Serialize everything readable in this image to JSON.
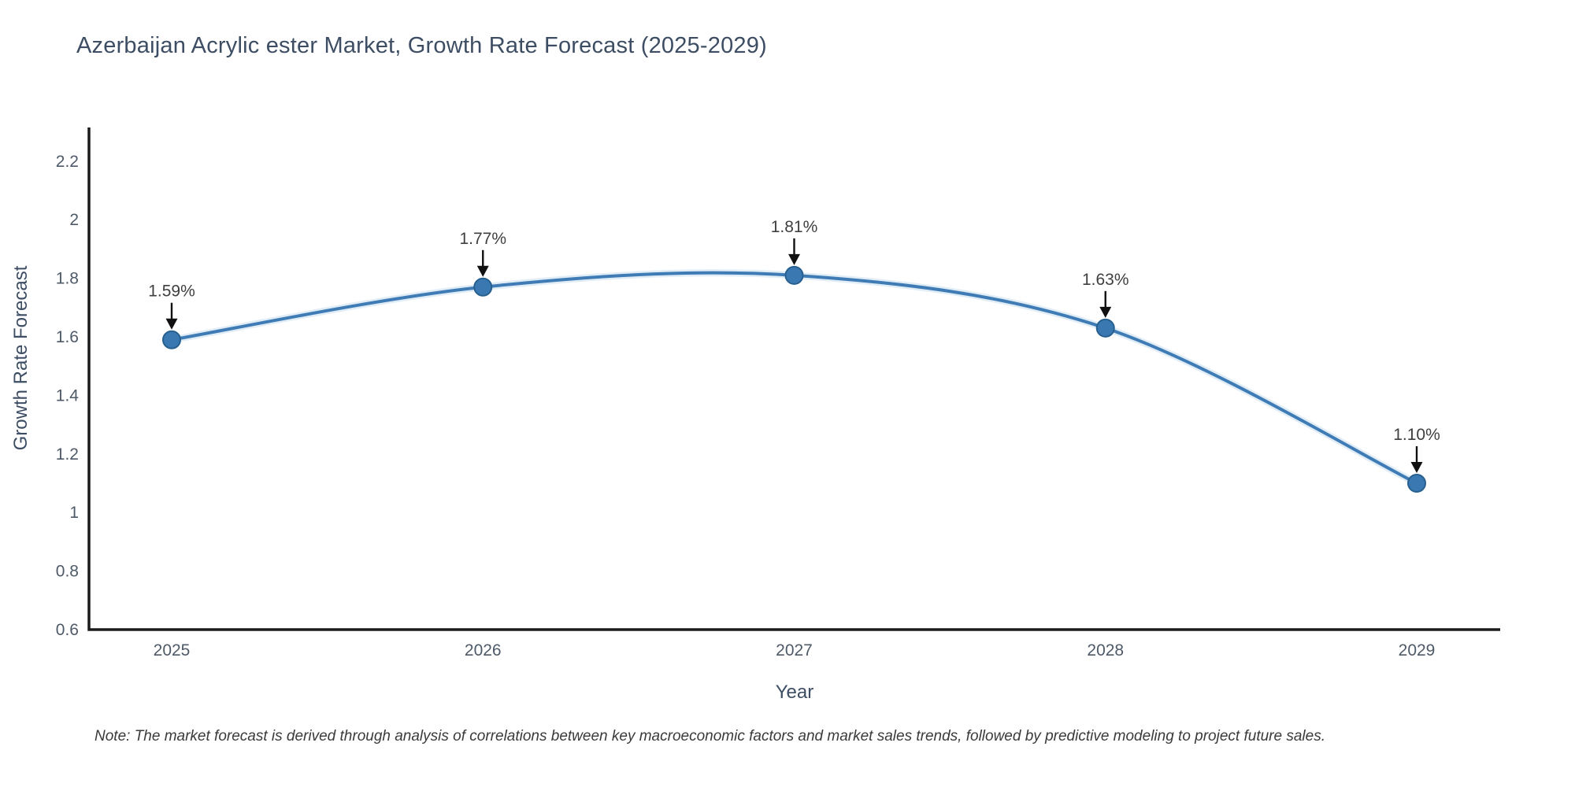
{
  "page": {
    "background": "#ffffff"
  },
  "chart_data": {
    "type": "line",
    "title": "Azerbaijan Acrylic ester Market, Growth Rate Forecast (2025-2029)",
    "xlabel": "Year",
    "ylabel": "Growth Rate Forecast",
    "categories": [
      "2025",
      "2026",
      "2027",
      "2028",
      "2029"
    ],
    "x": [
      2025,
      2026,
      2027,
      2028,
      2029
    ],
    "values": [
      1.59,
      1.77,
      1.81,
      1.63,
      1.1
    ],
    "point_labels": [
      "1.59%",
      "1.77%",
      "1.81%",
      "1.63%",
      "1.10%"
    ],
    "series": [
      {
        "name": "Growth Rate Forecast",
        "values": [
          1.59,
          1.77,
          1.81,
          1.63,
          1.1
        ]
      }
    ],
    "ytick_values": [
      0.6,
      0.8,
      1.0,
      1.2,
      1.4,
      1.6,
      1.8,
      2.0,
      2.2
    ],
    "ytick_labels": [
      "0.6",
      "0.8",
      "1",
      "1.2",
      "1.4",
      "1.6",
      "1.8",
      "2",
      "2.2"
    ],
    "ylim": [
      0.6,
      2.32
    ],
    "grid": false,
    "legend": "none",
    "line_shape": "spline",
    "annotation_style": "value label with downward black arrow to marker",
    "colors": {
      "line": "#3f7cb6",
      "line_halo": "#bcd7ec",
      "marker": "#3a78b2",
      "marker_edge": "#27608f",
      "axis": "#1a1a1a",
      "tick_label": "#4f5a68",
      "title": "#3d4d63",
      "annotation_text": "#3f3f3f",
      "arrow": "#111111"
    }
  },
  "note": {
    "text": "Note: The market forecast is derived through analysis of correlations between key macroeconomic factors and market sales trends, followed by predictive modeling to project future sales."
  }
}
